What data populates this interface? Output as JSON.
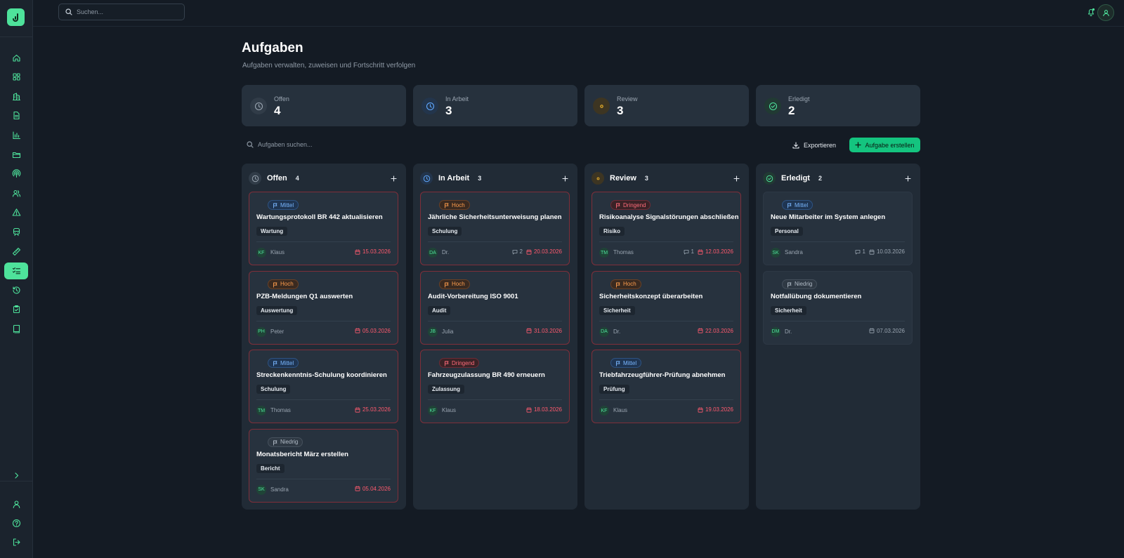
{
  "topbar": {
    "search_placeholder": "Suchen..."
  },
  "sidebar": {
    "icons": [
      "home-icon",
      "dashboard-icon",
      "building-icon",
      "document-icon",
      "chart-icon",
      "folder-icon",
      "signal-icon",
      "users-icon",
      "warning-icon",
      "train-icon",
      "ruler-icon",
      "tasks-icon",
      "history-icon",
      "clipboard-check-icon",
      "book-icon"
    ],
    "active_icon": "tasks-icon",
    "bottom_icons": [
      "chevron-right-icon",
      "user-icon",
      "help-icon",
      "logout-icon"
    ]
  },
  "header": {
    "title": "Aufgaben",
    "subtitle": "Aufgaben verwalten, zuweisen und Fortschritt verfolgen"
  },
  "stats": [
    {
      "label": "Offen",
      "value": "4",
      "icon": "clock-icon",
      "color": "#9aa5b1"
    },
    {
      "label": "In Arbeit",
      "value": "3",
      "icon": "clock-icon",
      "color": "#5fa8ff"
    },
    {
      "label": "Review",
      "value": "3",
      "icon": "eye-icon",
      "color": "#f0b429"
    },
    {
      "label": "Erledigt",
      "value": "2",
      "icon": "check-circle-icon",
      "color": "#4ee29b"
    }
  ],
  "toolbar": {
    "search_placeholder": "Aufgaben suchen...",
    "export_label": "Exportieren",
    "create_label": "Aufgabe erstellen"
  },
  "columns": [
    {
      "title": "Offen",
      "count": "4",
      "icon": "clock-icon",
      "color": "#9aa5b1",
      "cards": [
        {
          "priority": "Mittel",
          "prio_class": "mittel",
          "title": "Wartungsprotokoll BR 442 aktualisieren",
          "tag": "Wartung",
          "initials": "KF",
          "assignee": "Klaus",
          "comments": "",
          "date": "15.03.2026",
          "overdue": true
        },
        {
          "priority": "Hoch",
          "prio_class": "hoch",
          "title": "PZB-Meldungen Q1 auswerten",
          "tag": "Auswertung",
          "initials": "PH",
          "assignee": "Peter",
          "comments": "",
          "date": "05.03.2026",
          "overdue": true
        },
        {
          "priority": "Mittel",
          "prio_class": "mittel",
          "title": "Streckenkenntnis-Schulung koordinieren",
          "tag": "Schulung",
          "initials": "TM",
          "assignee": "Thomas",
          "comments": "",
          "date": "25.03.2026",
          "overdue": true
        },
        {
          "priority": "Niedrig",
          "prio_class": "niedrig",
          "title": "Monatsbericht März erstellen",
          "tag": "Bericht",
          "initials": "SK",
          "assignee": "Sandra",
          "comments": "",
          "date": "05.04.2026",
          "overdue": true
        }
      ]
    },
    {
      "title": "In Arbeit",
      "count": "3",
      "icon": "clock-icon",
      "color": "#5fa8ff",
      "cards": [
        {
          "priority": "Hoch",
          "prio_class": "hoch",
          "title": "Jährliche Sicherheitsunterweisung planen",
          "tag": "Schulung",
          "initials": "DA",
          "assignee": "Dr.",
          "comments": "2",
          "date": "20.03.2026",
          "overdue": true
        },
        {
          "priority": "Hoch",
          "prio_class": "hoch",
          "title": "Audit-Vorbereitung ISO 9001",
          "tag": "Audit",
          "initials": "JB",
          "assignee": "Julia",
          "comments": "",
          "date": "31.03.2026",
          "overdue": true
        },
        {
          "priority": "Dringend",
          "prio_class": "dringend",
          "title": "Fahrzeugzulassung BR 490 erneuern",
          "tag": "Zulassung",
          "initials": "KF",
          "assignee": "Klaus",
          "comments": "",
          "date": "18.03.2026",
          "overdue": true
        }
      ]
    },
    {
      "title": "Review",
      "count": "3",
      "icon": "eye-icon",
      "color": "#f0b429",
      "cards": [
        {
          "priority": "Dringend",
          "prio_class": "dringend",
          "title": "Risikoanalyse Signalstörungen abschließen",
          "tag": "Risiko",
          "initials": "TM",
          "assignee": "Thomas",
          "comments": "1",
          "date": "12.03.2026",
          "overdue": true
        },
        {
          "priority": "Hoch",
          "prio_class": "hoch",
          "title": "Sicherheitskonzept überarbeiten",
          "tag": "Sicherheit",
          "initials": "DA",
          "assignee": "Dr.",
          "comments": "",
          "date": "22.03.2026",
          "overdue": true
        },
        {
          "priority": "Mittel",
          "prio_class": "mittel",
          "title": "Triebfahrzeugführer-Prüfung abnehmen",
          "tag": "Prüfung",
          "initials": "KF",
          "assignee": "Klaus",
          "comments": "",
          "date": "19.03.2026",
          "overdue": true
        }
      ]
    },
    {
      "title": "Erledigt",
      "count": "2",
      "icon": "check-circle-icon",
      "color": "#4ee29b",
      "cards": [
        {
          "priority": "Mittel",
          "prio_class": "mittel",
          "title": "Neue Mitarbeiter im System anlegen",
          "tag": "Personal",
          "initials": "SK",
          "assignee": "Sandra",
          "comments": "1",
          "date": "10.03.2026",
          "overdue": false
        },
        {
          "priority": "Niedrig",
          "prio_class": "niedrig",
          "title": "Notfallübung dokumentieren",
          "tag": "Sicherheit",
          "initials": "DM",
          "assignee": "Dr.",
          "comments": "",
          "date": "07.03.2026",
          "overdue": false
        }
      ]
    }
  ]
}
